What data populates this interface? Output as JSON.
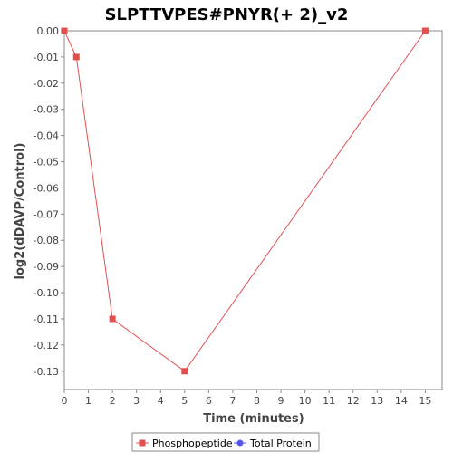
{
  "chart_data": {
    "type": "line",
    "title": "SLPTTVPES#PNYR(+ 2)_v2",
    "xlabel": "Time (minutes)",
    "ylabel": "log2(dDAVP/Control)",
    "x_ticks": [
      "0",
      "1",
      "2",
      "3",
      "4",
      "5",
      "6",
      "7",
      "8",
      "9",
      "10",
      "11",
      "12",
      "13",
      "14",
      "15"
    ],
    "y_ticks": [
      "0.00",
      "-0.01",
      "-0.02",
      "-0.03",
      "-0.04",
      "-0.05",
      "-0.06",
      "-0.07",
      "-0.08",
      "-0.09",
      "-0.10",
      "-0.11",
      "-0.12",
      "-0.13"
    ],
    "xlim": [
      0,
      15.7
    ],
    "ylim": [
      -0.137,
      0.0
    ],
    "grid": false,
    "legend_position": "bottom",
    "series": [
      {
        "name": "Phosphopeptide",
        "color": "#e05050",
        "marker": "square",
        "x": [
          0,
          0.5,
          2,
          5,
          15
        ],
        "y": [
          0.0,
          -0.01,
          -0.11,
          -0.13,
          0.0
        ]
      },
      {
        "name": "Total Protein",
        "color": "#5555ee",
        "marker": "circle",
        "x": [],
        "y": []
      }
    ]
  }
}
